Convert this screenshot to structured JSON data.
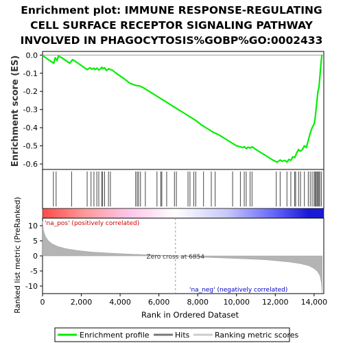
{
  "chart_data": {
    "type": "line",
    "title_lines": [
      "Enrichment plot: IMMUNE RESPONSE-REGULATING",
      "CELL SURFACE RECEPTOR SIGNALING PATHWAY",
      "INVOLVED IN PHAGOCYTOSIS%GOBP%GO:0002433"
    ],
    "xlabel": "Rank in Ordered Dataset",
    "es_ylabel": "Enrichment score (ES)",
    "metric_ylabel": "Ranked list metric (PreRanked)",
    "xlim": [
      0,
      14500
    ],
    "x_ticks": [
      0,
      2000,
      4000,
      6000,
      8000,
      10000,
      12000,
      14000
    ],
    "x_tick_labels": [
      "0",
      "2,000",
      "4,000",
      "6,000",
      "8,000",
      "10,000",
      "12,000",
      "14,000"
    ],
    "es_ylim": [
      -0.63,
      0.02
    ],
    "es_ticks": [
      0.0,
      -0.1,
      -0.2,
      -0.3,
      -0.4,
      -0.5,
      -0.6
    ],
    "es_tick_labels": [
      "0.0",
      "-0.1",
      "-0.2",
      "-0.3",
      "-0.4",
      "-0.5",
      "-0.6"
    ],
    "metric_ylim": [
      -12.5,
      12.5
    ],
    "metric_ticks": [
      10,
      5,
      0,
      -5,
      -10
    ],
    "metric_tick_labels": [
      "10",
      "5",
      "0",
      "-5",
      "-10"
    ],
    "enrichment_profile": {
      "name": "Enrichment profile",
      "color": "#00ee00",
      "x": [
        0,
        300,
        580,
        650,
        750,
        820,
        900,
        1000,
        1200,
        1400,
        1550,
        1700,
        1900,
        2100,
        2300,
        2450,
        2550,
        2650,
        2700,
        2800,
        2900,
        3000,
        3060,
        3100,
        3200,
        3300,
        3420,
        3500,
        3600,
        3800,
        4000,
        4200,
        4500,
        4750,
        4850,
        5000,
        5200,
        5500,
        5800,
        6100,
        6400,
        6700,
        7000,
        7300,
        7600,
        7900,
        8200,
        8500,
        8800,
        9100,
        9400,
        9700,
        10000,
        10200,
        10300,
        10400,
        10500,
        10600,
        10700,
        10800,
        11000,
        11300,
        11600,
        11900,
        12100,
        12250,
        12350,
        12500,
        12600,
        12700,
        12800,
        12900,
        13000,
        13100,
        13200,
        13300,
        13400,
        13500,
        13600,
        13700,
        13800,
        13900,
        14000,
        14050,
        14100,
        14150,
        14200,
        14250,
        14300,
        14350,
        14400
      ],
      "y": [
        -0.002,
        -0.025,
        -0.045,
        -0.015,
        -0.03,
        -0.005,
        -0.01,
        -0.015,
        -0.03,
        -0.045,
        -0.025,
        -0.035,
        -0.05,
        -0.065,
        -0.08,
        -0.07,
        -0.078,
        -0.072,
        -0.08,
        -0.072,
        -0.082,
        -0.075,
        -0.067,
        -0.075,
        -0.07,
        -0.085,
        -0.075,
        -0.08,
        -0.083,
        -0.1,
        -0.115,
        -0.13,
        -0.155,
        -0.165,
        -0.168,
        -0.17,
        -0.18,
        -0.2,
        -0.22,
        -0.24,
        -0.26,
        -0.28,
        -0.3,
        -0.32,
        -0.34,
        -0.36,
        -0.385,
        -0.405,
        -0.425,
        -0.44,
        -0.46,
        -0.48,
        -0.5,
        -0.505,
        -0.51,
        -0.505,
        -0.515,
        -0.508,
        -0.512,
        -0.505,
        -0.52,
        -0.54,
        -0.56,
        -0.58,
        -0.59,
        -0.578,
        -0.585,
        -0.58,
        -0.59,
        -0.575,
        -0.58,
        -0.56,
        -0.565,
        -0.54,
        -0.52,
        -0.53,
        -0.52,
        -0.5,
        -0.51,
        -0.47,
        -0.43,
        -0.4,
        -0.38,
        -0.35,
        -0.3,
        -0.25,
        -0.2,
        -0.18,
        -0.12,
        -0.05,
        0.0
      ]
    },
    "hits": {
      "name": "Hits",
      "positions": [
        560,
        700,
        1500,
        2300,
        2500,
        2650,
        2800,
        2900,
        3050,
        3100,
        3200,
        3400,
        3500,
        4800,
        4880,
        4950,
        5050,
        5300,
        5900,
        6100,
        6150,
        6400,
        6800,
        6900,
        7500,
        7600,
        7800,
        7900,
        8300,
        8700,
        8900,
        9800,
        10200,
        10400,
        10500,
        10700,
        10800,
        12050,
        12250,
        12600,
        12800,
        13000,
        13050,
        13200,
        13300,
        13500,
        13700,
        13800,
        13900,
        14000,
        14050,
        14100,
        14150,
        14200,
        14250,
        14300,
        14380
      ]
    },
    "heatmap_colors": [
      "#ff4a4a",
      "#ff9a9a",
      "#ffc4e8",
      "#ffffff",
      "#c8c8f8",
      "#6b6bff",
      "#1a1ad6"
    ],
    "heatmap_stops": [
      0,
      2200,
      4400,
      6854,
      9500,
      11800,
      13700,
      14500
    ],
    "ranking_metric": {
      "name": "Ranking metric scores",
      "x": [
        0,
        50,
        150,
        300,
        500,
        800,
        1200,
        1800,
        2500,
        3500,
        4500,
        5500,
        6300,
        6854,
        7500,
        8500,
        9500,
        10500,
        11500,
        12200,
        12800,
        13300,
        13700,
        13950,
        14150,
        14300,
        14380,
        14420
      ],
      "y": [
        11.5,
        8.5,
        6.5,
        5.0,
        4.0,
        3.1,
        2.4,
        1.8,
        1.3,
        0.9,
        0.6,
        0.35,
        0.15,
        0.0,
        -0.2,
        -0.5,
        -0.75,
        -1.0,
        -1.3,
        -1.7,
        -2.1,
        -2.6,
        -3.2,
        -4.0,
        -5.0,
        -6.5,
        -9.0,
        -12.2
      ]
    },
    "zero_cross_label": "Zero cross at 6854",
    "zero_cross_x": 6854,
    "pos_label": "'na_pos' (positively correlated)",
    "neg_label": "'na_neg' (negatively correlated)",
    "legend": [
      "Enrichment profile",
      "Hits",
      "Ranking metric scores"
    ],
    "legend_placement": "bottom"
  }
}
